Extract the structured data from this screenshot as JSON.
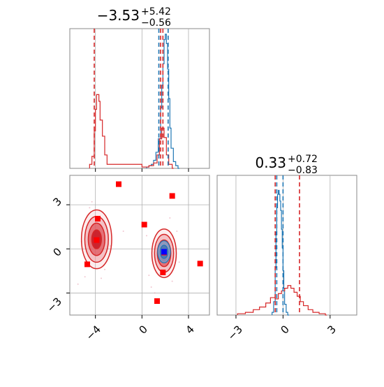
{
  "colors": {
    "blue": "#1f77b4",
    "red": "#d62728",
    "grid": "#b0b0b0",
    "frame": "#888888",
    "marker_red": "#ff0000",
    "marker_blue": "#0000ff"
  },
  "chart_data": [
    {
      "type": "histogram",
      "panel": "top-left",
      "title": {
        "value": "−3.53",
        "upper": "+5.42",
        "lower": "−0.56"
      },
      "xlim": [
        -6.2,
        5.8
      ],
      "series": [
        {
          "color": "blue",
          "bins": [
            [
              0.4,
              0.01
            ],
            [
              0.6,
              0.02
            ],
            [
              0.8,
              0.03
            ],
            [
              1.0,
              0.06
            ],
            [
              1.2,
              0.12
            ],
            [
              1.4,
              0.22
            ],
            [
              1.6,
              0.45
            ],
            [
              1.7,
              0.62
            ],
            [
              1.8,
              0.78
            ],
            [
              1.9,
              0.96
            ],
            [
              2.0,
              1.0
            ],
            [
              2.1,
              0.93
            ],
            [
              2.2,
              0.74
            ],
            [
              2.3,
              0.52
            ],
            [
              2.4,
              0.3
            ],
            [
              2.5,
              0.15
            ],
            [
              2.7,
              0.05
            ],
            [
              2.9,
              0.02
            ],
            [
              3.1,
              0.0
            ]
          ]
        },
        {
          "color": "red",
          "bins": [
            [
              -4.5,
              0.03
            ],
            [
              -4.3,
              0.09
            ],
            [
              -4.1,
              0.28
            ],
            [
              -4.0,
              0.44
            ],
            [
              -3.9,
              0.55
            ],
            [
              -3.8,
              0.55
            ],
            [
              -3.7,
              0.5
            ],
            [
              -3.6,
              0.36
            ],
            [
              -3.4,
              0.24
            ],
            [
              -3.2,
              0.1
            ],
            [
              -3.0,
              0.03
            ],
            [
              0.0,
              0.01
            ],
            [
              0.6,
              0.02
            ],
            [
              1.0,
              0.04
            ],
            [
              1.3,
              0.1
            ],
            [
              1.5,
              0.22
            ],
            [
              1.7,
              0.3
            ],
            [
              1.9,
              0.23
            ],
            [
              2.1,
              0.1
            ],
            [
              2.3,
              0.03
            ],
            [
              2.6,
              0.0
            ]
          ]
        }
      ],
      "vlines": [
        {
          "x": -4.1,
          "color": "red",
          "style": "dashed"
        },
        {
          "x": 1.6,
          "color": "red",
          "style": "dashed"
        },
        {
          "x": 1.8,
          "color": "red",
          "style": "dashed"
        },
        {
          "x": 1.45,
          "color": "blue",
          "style": "dashed"
        },
        {
          "x": 2.25,
          "color": "blue",
          "style": "dashed"
        }
      ],
      "grid": true
    },
    {
      "type": "contour",
      "panel": "bottom-left",
      "xlim": [
        -6.2,
        5.8
      ],
      "ylim": [
        -4.5,
        5
      ],
      "xticks": [
        -4,
        0,
        4
      ],
      "xtick_labels": [
        "−4",
        "0",
        "4"
      ],
      "yticks": [
        3,
        0,
        -3
      ],
      "ytick_labels": [
        "3",
        "0",
        "−3"
      ],
      "red_blobs": [
        {
          "cx": -3.9,
          "cy": 0.65,
          "rx": 1.3,
          "ry": 2.0
        },
        {
          "cx": 1.9,
          "cy": -0.3,
          "rx": 1.05,
          "ry": 1.65
        }
      ],
      "blue_blob": {
        "cx": 1.9,
        "cy": -0.2,
        "rx": 0.55,
        "ry": 0.75
      },
      "markers_red": [
        [
          -2.0,
          4.4
        ],
        [
          2.6,
          3.6
        ],
        [
          0.2,
          1.65
        ],
        [
          -3.8,
          2.05
        ],
        [
          -3.9,
          0.6
        ],
        [
          -4.7,
          -1.05
        ],
        [
          1.8,
          -1.6
        ],
        [
          5.0,
          -1.0
        ],
        [
          1.3,
          -3.55
        ],
        [
          1.9,
          -0.25
        ]
      ],
      "marker_blue": [
        1.9,
        -0.2
      ],
      "grid": true
    },
    {
      "type": "histogram",
      "panel": "bottom-right",
      "title": {
        "value": "0.33",
        "upper": "+0.72",
        "lower": "−0.83"
      },
      "xlim": [
        -4.2,
        4.7
      ],
      "xticks": [
        -3,
        0,
        3
      ],
      "xtick_labels": [
        "−3",
        "0",
        "3"
      ],
      "series": [
        {
          "color": "blue",
          "bins": [
            [
              -0.7,
              0.02
            ],
            [
              -0.6,
              0.1
            ],
            [
              -0.5,
              0.35
            ],
            [
              -0.45,
              0.62
            ],
            [
              -0.4,
              0.8
            ],
            [
              -0.35,
              0.9
            ],
            [
              -0.3,
              0.93
            ],
            [
              -0.25,
              0.9
            ],
            [
              -0.2,
              0.85
            ],
            [
              -0.15,
              0.78
            ],
            [
              -0.1,
              0.64
            ],
            [
              -0.05,
              0.5
            ],
            [
              0.0,
              0.33
            ],
            [
              0.05,
              0.2
            ],
            [
              0.1,
              0.08
            ],
            [
              0.2,
              0.02
            ],
            [
              0.3,
              0.0
            ]
          ]
        },
        {
          "color": "red",
          "bins": [
            [
              -2.9,
              0.01
            ],
            [
              -2.4,
              0.02
            ],
            [
              -1.9,
              0.04
            ],
            [
              -1.5,
              0.06
            ],
            [
              -1.1,
              0.09
            ],
            [
              -0.8,
              0.13
            ],
            [
              -0.5,
              0.12
            ],
            [
              -0.3,
              0.16
            ],
            [
              -0.1,
              0.18
            ],
            [
              0.1,
              0.2
            ],
            [
              0.3,
              0.22
            ],
            [
              0.5,
              0.2
            ],
            [
              0.7,
              0.17
            ],
            [
              0.9,
              0.14
            ],
            [
              1.1,
              0.1
            ],
            [
              1.3,
              0.07
            ],
            [
              1.6,
              0.04
            ],
            [
              1.9,
              0.02
            ],
            [
              2.3,
              0.01
            ],
            [
              2.7,
              0.0
            ]
          ]
        }
      ],
      "vlines": [
        {
          "x": -0.5,
          "color": "red",
          "style": "dashed"
        },
        {
          "x": 1.05,
          "color": "red",
          "style": "dashed"
        },
        {
          "x": -0.4,
          "color": "blue",
          "style": "dashed"
        },
        {
          "x": 0.0,
          "color": "blue",
          "style": "dashed"
        }
      ],
      "grid": true
    }
  ]
}
